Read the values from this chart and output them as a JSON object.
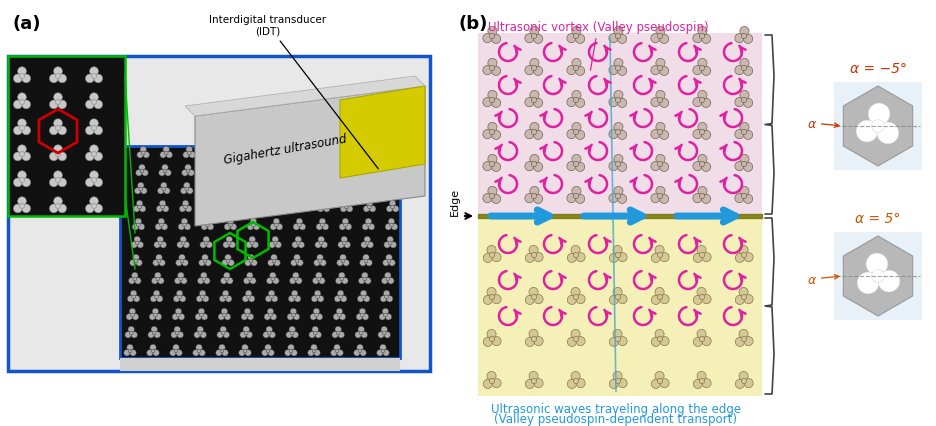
{
  "fig_width": 9.36,
  "fig_height": 4.27,
  "dpi": 100,
  "bg_color": "#ffffff",
  "label_a": "(a)",
  "label_b": "(b)",
  "label_fontsize": 13,
  "label_fontweight": "bold",
  "annotation_idt": "Interdigital transducer\n(IDT)",
  "annotation_giga": "Gigahertz ultrasound",
  "annotation_vortex": "Ultrasonic vortex (Valley pseudospin)",
  "annotation_edge_waves_1": "Ultrasonic waves traveling along the edge",
  "annotation_edge_waves_2": "(Valley pseudospin-dependent transport)",
  "annotation_edge_label": "Edge",
  "annotation_alpha_neg": "α = −5°",
  "annotation_alpha_pos": "α = 5°",
  "annotation_alpha_small": "α",
  "pink_bg": "#f0dde8",
  "yellow_bg": "#f5f0b8",
  "olive_edge": "#7a7a10",
  "magenta": "#e020a0",
  "cyan_arrow": "#2299dd",
  "red_hex": "#cc0000",
  "green_line": "#00bb00",
  "blue_border": "#1155cc",
  "orange_text": "#cc5500",
  "gray_hex_fill": "#b0b0b0",
  "light_blue_bg": "#e8f0f8",
  "unit_dark": "#666666",
  "unit_yellow": "#888844",
  "white": "#ffffff",
  "black": "#000000"
}
